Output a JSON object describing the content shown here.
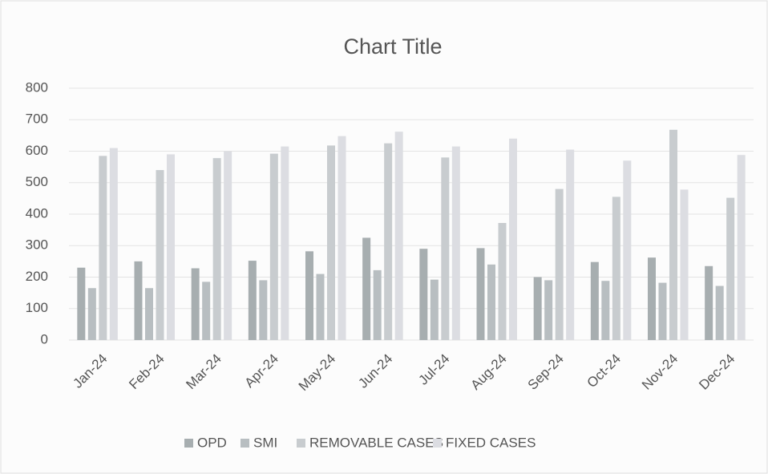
{
  "chart_data": {
    "type": "bar",
    "title": "Chart Title",
    "categories": [
      "Jan-24",
      "Feb-24",
      "Mar-24",
      "Apr-24",
      "May-24",
      "Jun-24",
      "Jul-24",
      "Aug-24",
      "Sep-24",
      "Oct-24",
      "Nov-24",
      "Dec-24"
    ],
    "series": [
      {
        "name": "OPD",
        "color": "#a7aeb0",
        "values": [
          230,
          250,
          228,
          252,
          282,
          325,
          290,
          292,
          200,
          248,
          262,
          235
        ]
      },
      {
        "name": "SMI",
        "color": "#b8bec1",
        "values": [
          165,
          165,
          185,
          190,
          210,
          222,
          192,
          240,
          190,
          188,
          182,
          172
        ]
      },
      {
        "name": "REMOVABLE CASES",
        "color": "#c8cccf",
        "values": [
          585,
          540,
          578,
          592,
          618,
          625,
          580,
          372,
          480,
          455,
          668,
          452
        ]
      },
      {
        "name": "FIXED CASES",
        "color": "#dcdde2",
        "values": [
          610,
          590,
          600,
          615,
          648,
          662,
          615,
          640,
          605,
          570,
          478,
          588
        ]
      }
    ],
    "ylim": [
      0,
      800
    ],
    "yticks": [
      0,
      100,
      200,
      300,
      400,
      500,
      600,
      700,
      800
    ],
    "grid": true,
    "legend": "bottom"
  }
}
